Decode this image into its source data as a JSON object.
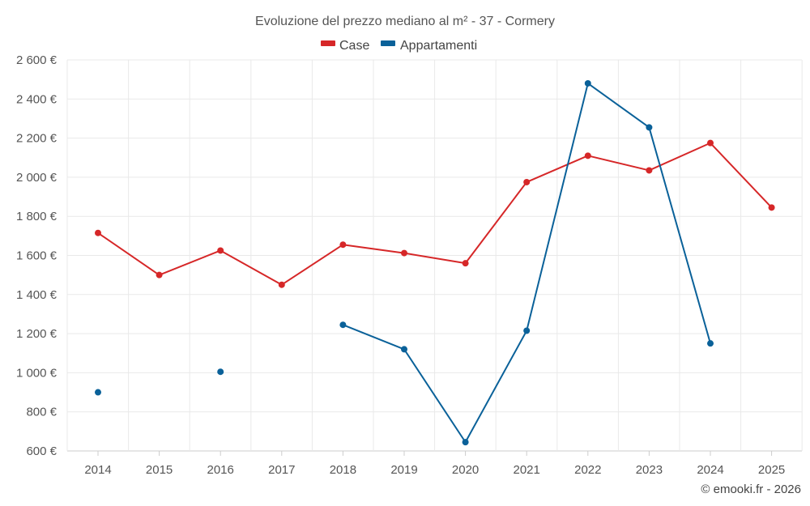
{
  "chart_data": {
    "type": "line",
    "title": "Evoluzione del prezzo mediano al m² - 37 - Cormery",
    "categories": [
      "2014",
      "2015",
      "2016",
      "2017",
      "2018",
      "2019",
      "2020",
      "2021",
      "2022",
      "2023",
      "2024",
      "2025"
    ],
    "series": [
      {
        "name": "Case",
        "color": "#d62728",
        "values": [
          1715,
          1500,
          1625,
          1450,
          1655,
          1612,
          1560,
          1975,
          2110,
          2035,
          2175,
          1845
        ]
      },
      {
        "name": "Appartamenti",
        "color": "#0a6199",
        "values": [
          900,
          null,
          1005,
          null,
          1245,
          1120,
          645,
          1215,
          2480,
          2255,
          1150,
          null
        ]
      }
    ],
    "ylim": [
      600,
      2600
    ],
    "yticks": [
      600,
      800,
      1000,
      1200,
      1400,
      1600,
      1800,
      2000,
      2200,
      2400,
      2600
    ],
    "ytick_labels": [
      "600 €",
      "800 €",
      "1 000 €",
      "1 200 €",
      "1 400 €",
      "1 600 €",
      "1 800 €",
      "2 000 €",
      "2 200 €",
      "2 400 €",
      "2 600 €"
    ],
    "xlabel": "",
    "ylabel": "",
    "legend_position": "top-center",
    "grid": true
  },
  "credit": "© emooki.fr - 2026"
}
